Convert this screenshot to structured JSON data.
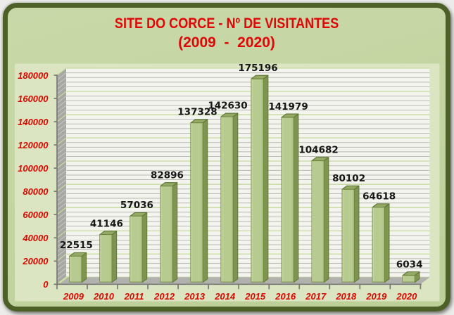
{
  "chart_data": {
    "type": "bar",
    "title": "SITE DO CORCE - Nº DE VISITANTES",
    "subtitle": "(2009  -  2020)",
    "categories": [
      "2009",
      "2010",
      "2011",
      "2012",
      "2013",
      "2014",
      "2015",
      "2016",
      "2017",
      "2018",
      "2019",
      "2020"
    ],
    "values": [
      22515,
      41146,
      57036,
      82896,
      137328,
      142630,
      175196,
      141979,
      104682,
      80102,
      64618,
      6034
    ],
    "xlabel": "",
    "ylabel": "",
    "ylim": [
      0,
      180000
    ],
    "y_major_step": 20000,
    "y_minor_step": 4000,
    "y_tick_labels": [
      "0",
      "20000",
      "40000",
      "60000",
      "80000",
      "100000",
      "120000",
      "140000",
      "160000",
      "180000"
    ],
    "grid": "on",
    "legend": "none",
    "style": "3d-column",
    "colors": {
      "title_text": "#df0707",
      "axis_label_text": "#d90800",
      "value_label_text": "#161616",
      "frame_border": "#4d6027",
      "slide_background": "#c4d5a2",
      "panel_background": "#dbe5c1",
      "back_wall": "#f3f4ed",
      "side_wall": "#a7a7a3",
      "floor": "#b1b1ad",
      "gridline_minor": "#b9b9b5",
      "gridline_major": "#c6d99e",
      "axis_line": "#7a7a76",
      "bar_front": "#b7ca8f",
      "bar_front_highlight": "#d3e0ae",
      "bar_front_dark": "#adc183",
      "bar_top": "#93a965",
      "bar_side": "#7e9450",
      "bar_outline": "#5c7531"
    }
  }
}
